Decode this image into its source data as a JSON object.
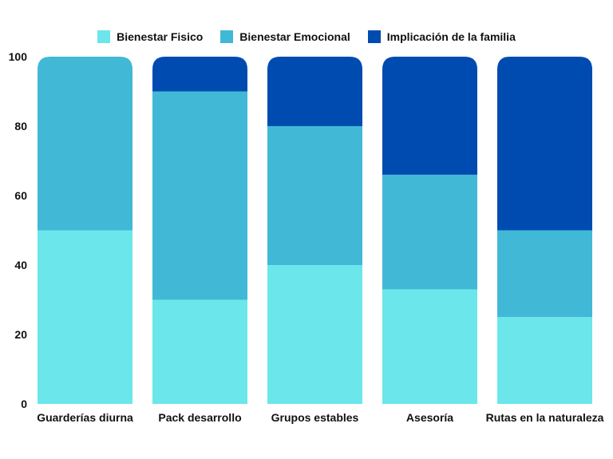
{
  "chart_data": {
    "type": "bar",
    "stacked": true,
    "categories": [
      "Guarderías diurna",
      "Pack desarrollo",
      "Grupos estables",
      "Asesoría",
      "Rutas en la naturaleza"
    ],
    "series": [
      {
        "name": "Bienestar Fisico",
        "color": "#6be6eb",
        "values": [
          50,
          30,
          40,
          33,
          25
        ]
      },
      {
        "name": "Bienestar Emocional",
        "color": "#42b8d7",
        "values": [
          50,
          60,
          40,
          33,
          25
        ]
      },
      {
        "name": "Implicación de la familia",
        "color": "#004bb0",
        "values": [
          0,
          10,
          20,
          34,
          50
        ]
      }
    ],
    "title": "",
    "xlabel": "",
    "ylabel": "",
    "ylim": [
      0,
      100
    ],
    "yticks": [
      "0",
      "20",
      "40",
      "60",
      "80",
      "100"
    ],
    "grid": false,
    "legend_position": "top-center"
  }
}
